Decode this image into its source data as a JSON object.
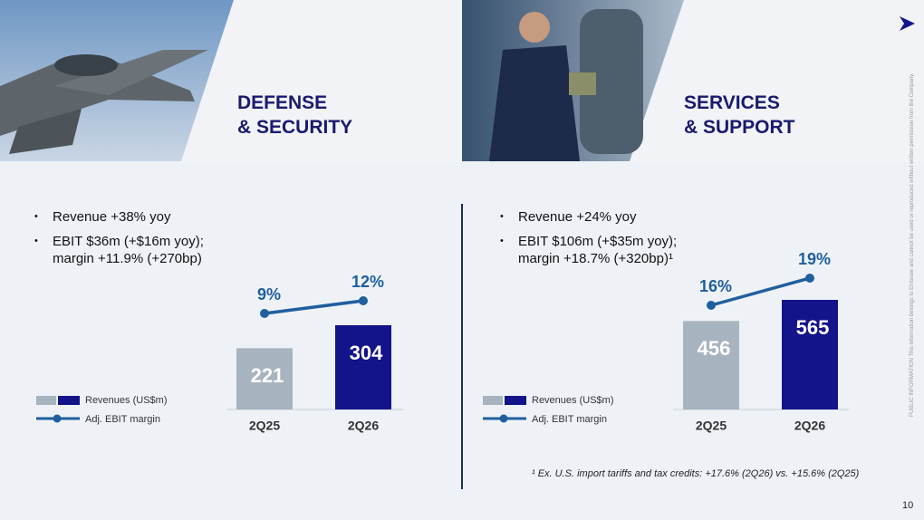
{
  "page": {
    "sections": [
      {
        "title_lines": [
          "DEFENSE",
          "& SECURITY"
        ],
        "bullets": [
          "Revenue +38% yoy",
          "EBIT $36m (+$16m yoy); margin +11.9% (+270bp)"
        ]
      },
      {
        "title_lines": [
          "SERVICES",
          "& SUPPORT"
        ],
        "bullets": [
          "Revenue +24% yoy",
          "EBIT $106m (+$35m yoy); margin +18.7% (+320bp)¹"
        ]
      }
    ],
    "footnote": "¹ Ex. U.S. import tariffs and tax credits: +17.6% (2Q26) vs. +15.6% (2Q25)",
    "page_number": "10",
    "side_note": "PUBLIC INFORMATION      This information belongs to Embraer and cannot be used or reproduced without written permission from the Company."
  },
  "chart_data": [
    {
      "type": "bar-line",
      "categories": [
        "2Q25",
        "2Q26"
      ],
      "series": [
        {
          "name": "Revenues (US$m)",
          "type": "bar",
          "colors": [
            "#a7b4c0",
            "#13138a"
          ],
          "values": [
            221,
            304
          ]
        },
        {
          "name": "Adj. EBIT margin",
          "type": "line",
          "color": "#1f5f9e",
          "values": [
            9,
            12
          ],
          "value_labels": [
            "9%",
            "12%"
          ]
        }
      ]
    },
    {
      "type": "bar-line",
      "categories": [
        "2Q25",
        "2Q26"
      ],
      "series": [
        {
          "name": "Revenues (US$m)",
          "type": "bar",
          "colors": [
            "#a7b4c0",
            "#13138a"
          ],
          "values": [
            456,
            565
          ]
        },
        {
          "name": "Adj. EBIT margin",
          "type": "line",
          "color": "#1f5f9e",
          "values": [
            16,
            19
          ],
          "value_labels": [
            "16%",
            "19%"
          ]
        }
      ]
    }
  ]
}
